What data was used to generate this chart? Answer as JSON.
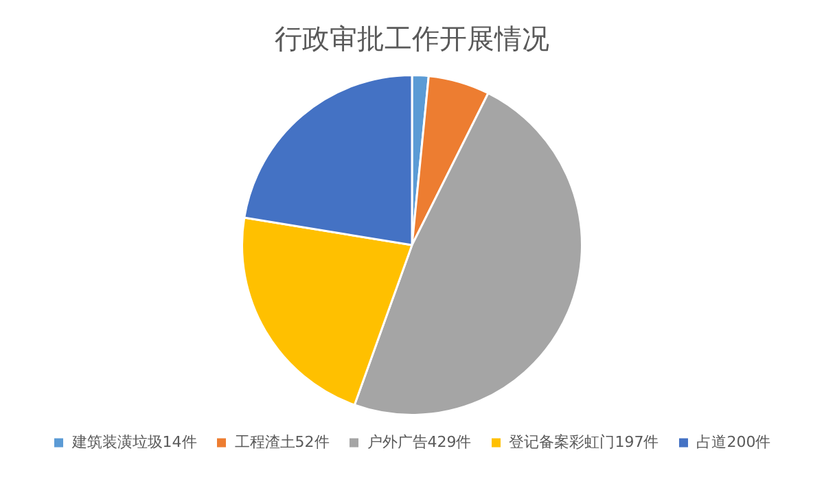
{
  "chart_data": {
    "type": "pie",
    "title": "行政审批工作开展情况",
    "categories": [
      "建筑装潢垃圾14件",
      "工程渣土52件",
      "户外广告429件",
      "登记备案彩虹门197件",
      "占道200件"
    ],
    "values": [
      14,
      52,
      429,
      197,
      200
    ],
    "colors": [
      "#5b9bd5",
      "#ed7d31",
      "#a5a5a5",
      "#ffc000",
      "#4472c4"
    ],
    "legend": "bottom"
  }
}
